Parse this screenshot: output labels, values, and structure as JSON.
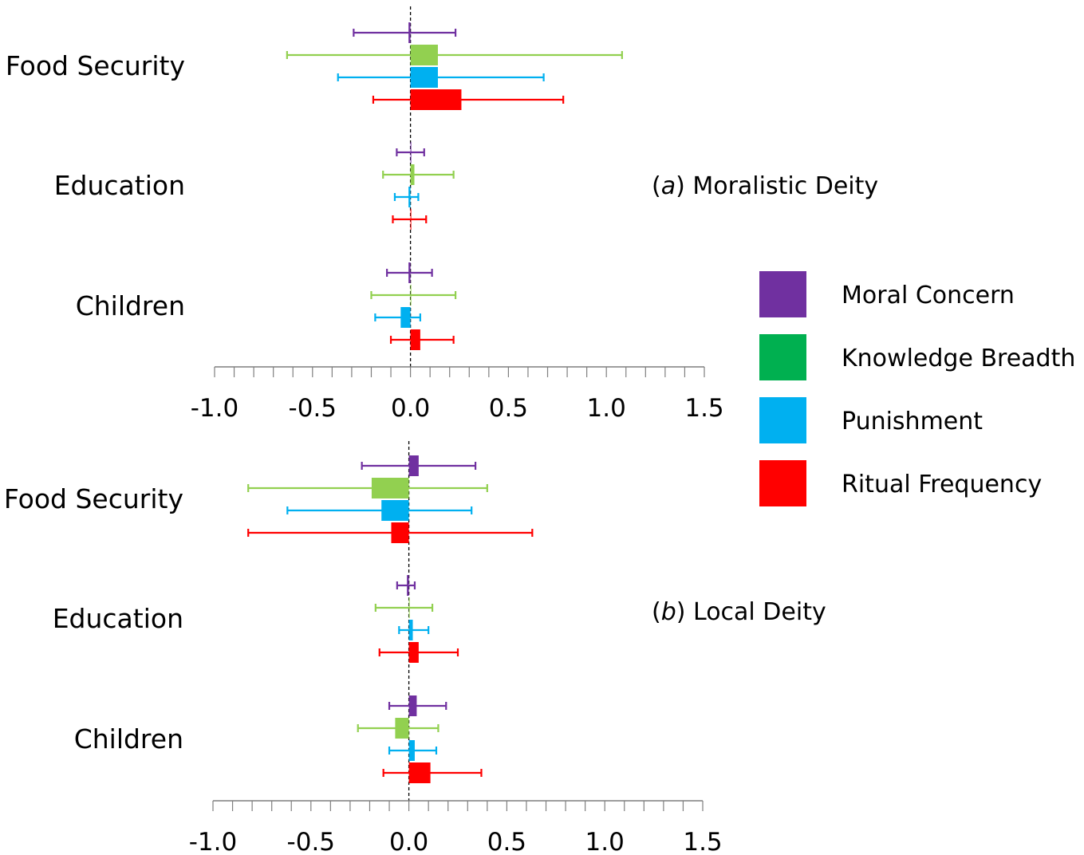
{
  "chart_data": {
    "type": "bar",
    "orientation": "horizontal",
    "error_bars": true,
    "legend": {
      "placement": "right",
      "items": [
        {
          "name": "Moral Concern",
          "color": "#7030A0"
        },
        {
          "name": "Knowledge Breadth",
          "color": "#00B050"
        },
        {
          "name": "Punishment",
          "color": "#00B0F0"
        },
        {
          "name": "Ritual Frequency",
          "color": "#FF0000"
        }
      ]
    },
    "bar_colors": [
      "#7030A0",
      "#92D050",
      "#00B0F0",
      "#FF0000"
    ],
    "xlim": [
      -1.0,
      1.5
    ],
    "xticks": [
      "-1.0",
      "-0.5",
      "0.0",
      "0.5",
      "1.0",
      "1.5"
    ],
    "categories": [
      "Food Security",
      "Education",
      "Children"
    ],
    "panels": [
      {
        "title_letter": "a",
        "title_rest": "Moralistic Deity",
        "series": [
          {
            "name": "Moral Concern",
            "values": [
              -0.01,
              0.0,
              -0.01
            ],
            "lower": [
              -0.29,
              -0.07,
              -0.12
            ],
            "upper": [
              0.23,
              0.07,
              0.11
            ]
          },
          {
            "name": "Knowledge Breadth",
            "values": [
              0.14,
              0.02,
              0.0
            ],
            "lower": [
              -0.63,
              -0.14,
              -0.2
            ],
            "upper": [
              1.08,
              0.22,
              0.23
            ]
          },
          {
            "name": "Punishment",
            "values": [
              0.14,
              -0.01,
              -0.05
            ],
            "lower": [
              -0.37,
              -0.08,
              -0.18
            ],
            "upper": [
              0.68,
              0.04,
              0.05
            ]
          },
          {
            "name": "Ritual Frequency",
            "values": [
              0.26,
              0.0,
              0.05
            ],
            "lower": [
              -0.19,
              -0.09,
              -0.1
            ],
            "upper": [
              0.78,
              0.08,
              0.22
            ]
          }
        ]
      },
      {
        "title_letter": "b",
        "title_rest": "Local Deity",
        "series": [
          {
            "name": "Moral Concern",
            "values": [
              0.05,
              -0.01,
              0.04
            ],
            "lower": [
              -0.24,
              -0.06,
              -0.1
            ],
            "upper": [
              0.34,
              0.03,
              0.19
            ]
          },
          {
            "name": "Knowledge Breadth",
            "values": [
              -0.19,
              0.0,
              -0.07
            ],
            "lower": [
              -0.82,
              -0.17,
              -0.26
            ],
            "upper": [
              0.4,
              0.12,
              0.15
            ]
          },
          {
            "name": "Punishment",
            "values": [
              -0.14,
              0.02,
              0.03
            ],
            "lower": [
              -0.62,
              -0.05,
              -0.1
            ],
            "upper": [
              0.32,
              0.1,
              0.14
            ]
          },
          {
            "name": "Ritual Frequency",
            "values": [
              -0.09,
              0.05,
              0.11
            ],
            "lower": [
              -0.82,
              -0.15,
              -0.13
            ],
            "upper": [
              0.63,
              0.25,
              0.37
            ]
          }
        ]
      }
    ]
  }
}
